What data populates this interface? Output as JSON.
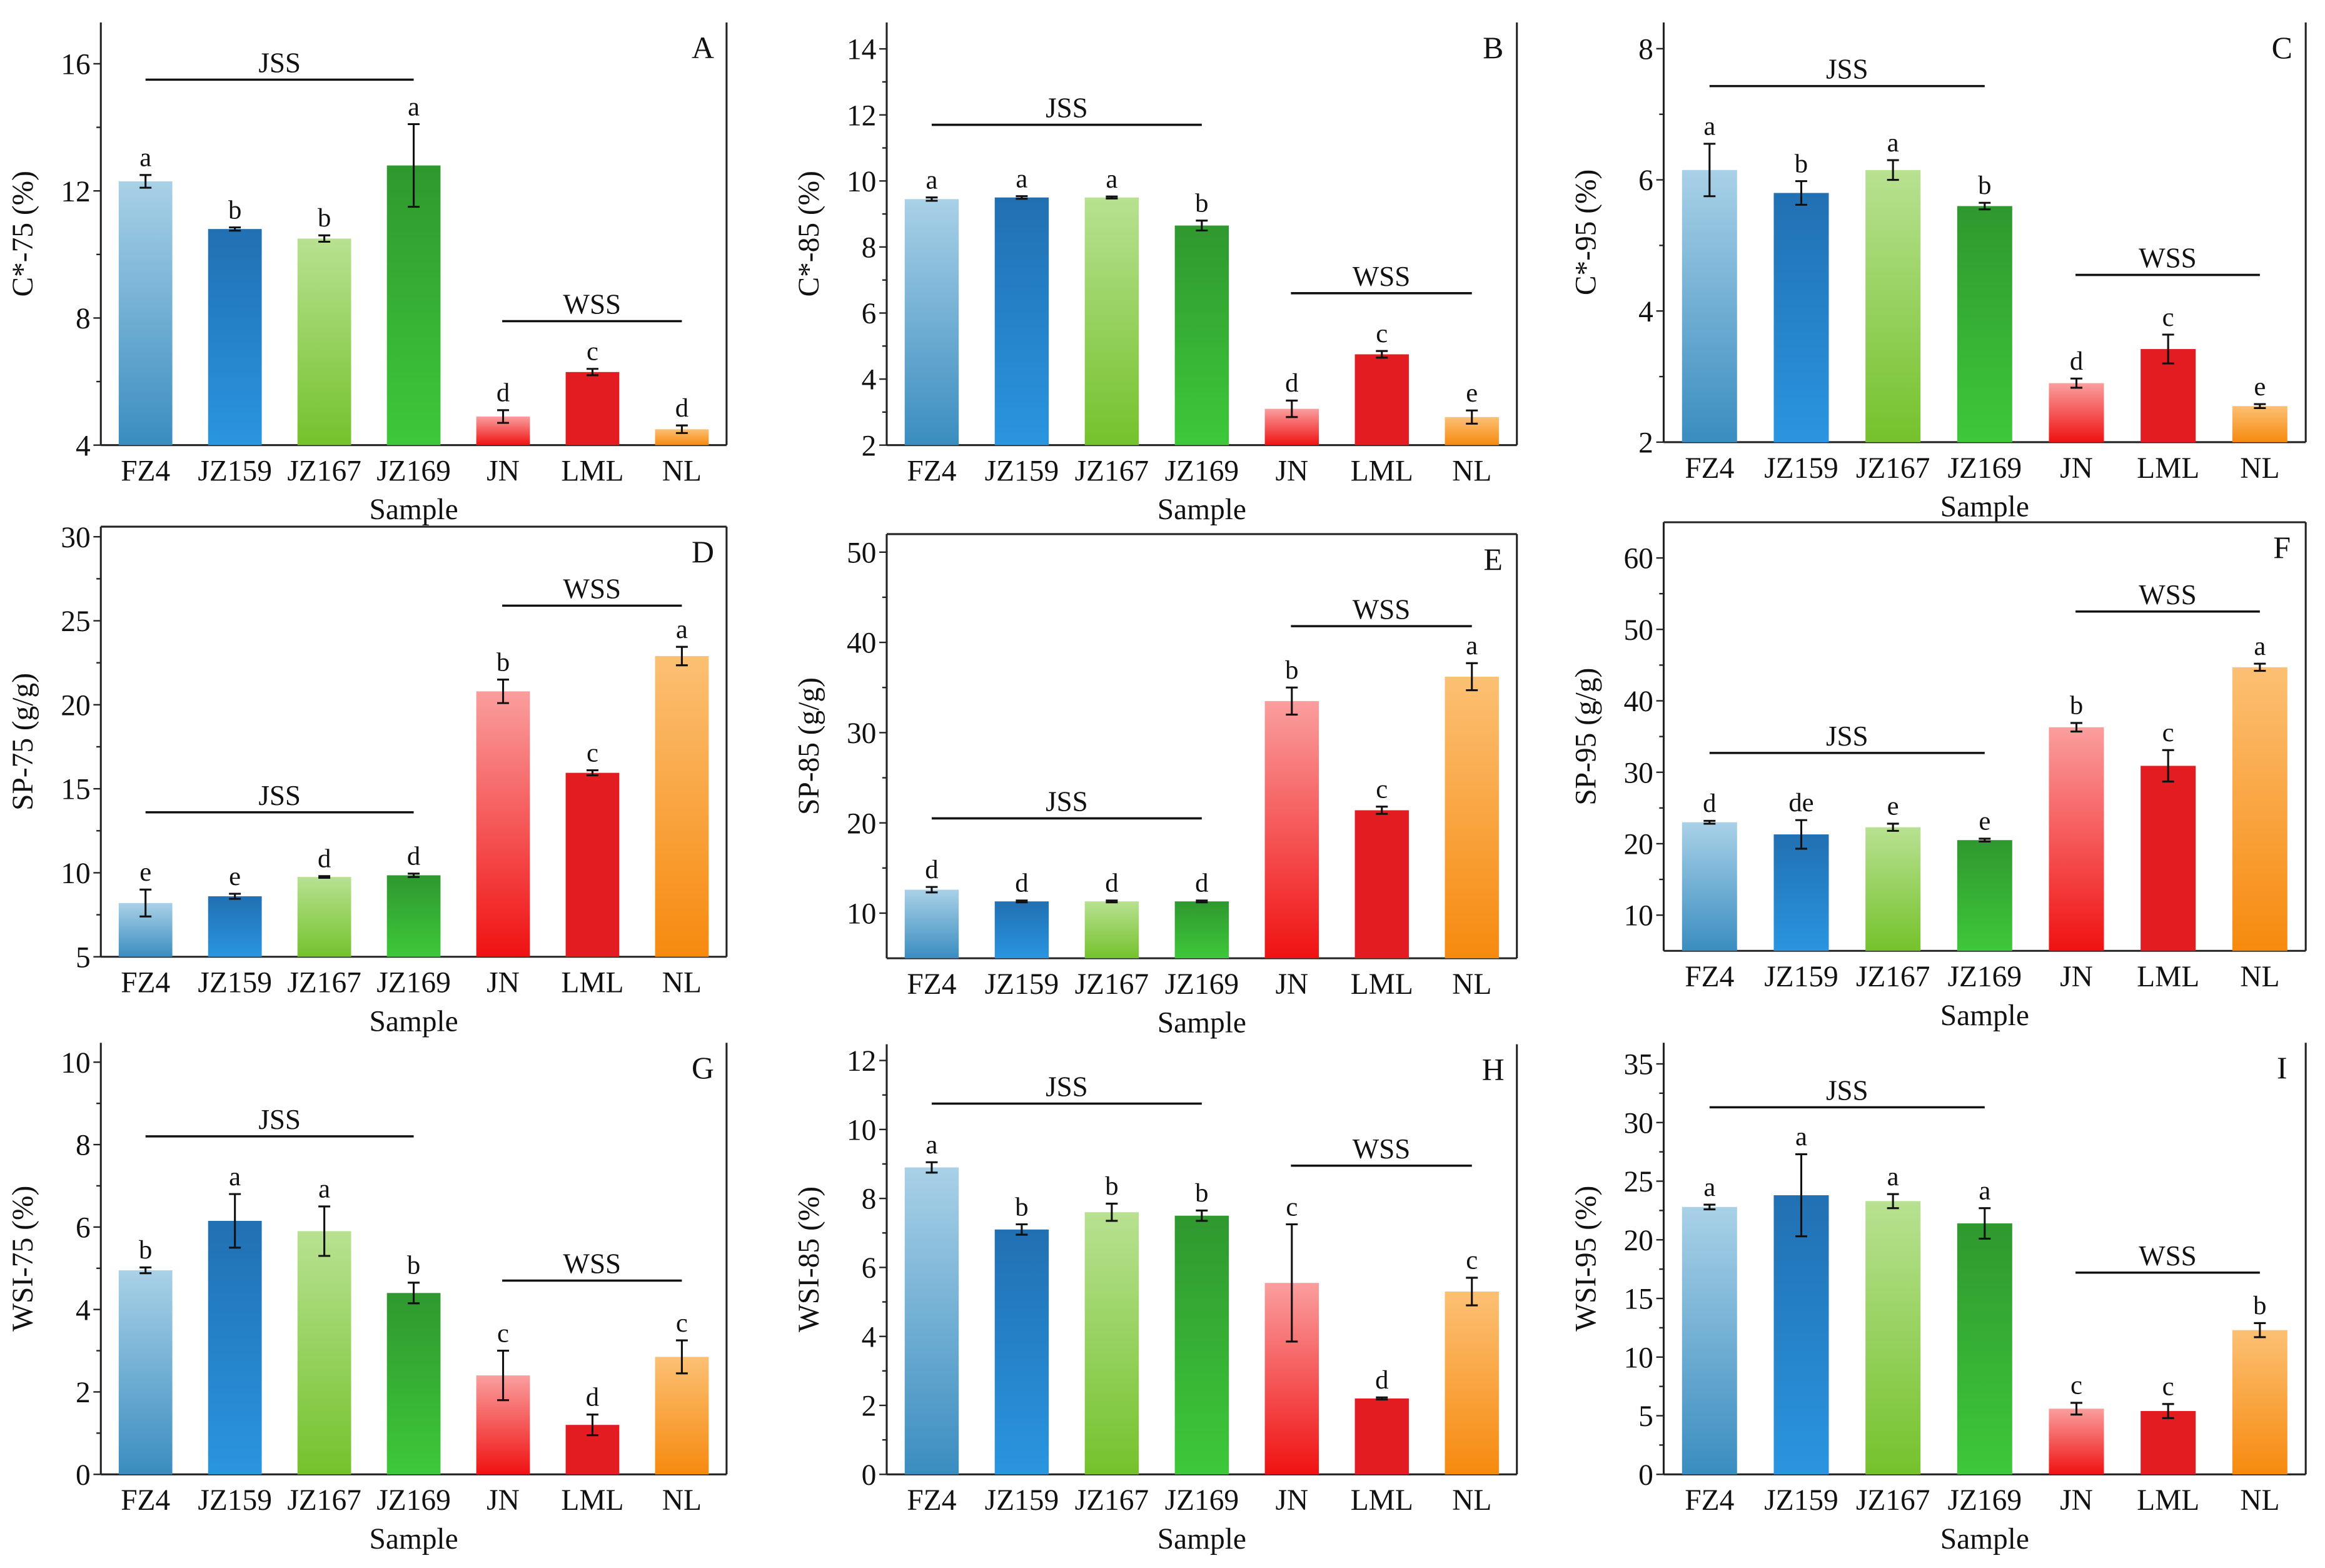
{
  "colors": {
    "FZ4": [
      "#a9d1e7",
      "#3a8dc0"
    ],
    "JZ159": [
      "#2170b2",
      "#2a95e0"
    ],
    "JZ167": [
      "#b8e191",
      "#74c22c"
    ],
    "JZ169": [
      "#2f982f",
      "#3ec83a"
    ],
    "JN": [
      "#fa9e9e",
      "#f01212"
    ],
    "LML": [
      "#e31c22",
      "#e31c22"
    ],
    "NL": [
      "#fcc074",
      "#f68a0e"
    ]
  },
  "chart_data": [
    {
      "panel": "A",
      "type": "bar",
      "ylabel": "C*-75 (%)",
      "xlabel": "Sample",
      "categories": [
        "FZ4",
        "JZ159",
        "JZ167",
        "JZ169",
        "JN",
        "LML",
        "NL"
      ],
      "values": [
        12.3,
        10.8,
        10.5,
        12.8,
        4.9,
        6.3,
        4.5
      ],
      "errors": [
        0.2,
        0.05,
        0.1,
        1.3,
        0.2,
        0.1,
        0.12
      ],
      "letters": [
        "a",
        "b",
        "b",
        "a",
        "d",
        "c",
        "d"
      ],
      "ylim": [
        4,
        17.3
      ],
      "ticks": [
        4,
        8,
        12,
        16
      ],
      "groups": [
        {
          "label": "JSS",
          "y": 15.5
        },
        {
          "label": "WSS",
          "y": 7.9
        }
      ]
    },
    {
      "panel": "B",
      "type": "bar",
      "ylabel": "C*-85 (%)",
      "xlabel": "Sample",
      "categories": [
        "FZ4",
        "JZ159",
        "JZ167",
        "JZ169",
        "JN",
        "LML",
        "NL"
      ],
      "values": [
        9.45,
        9.5,
        9.5,
        8.65,
        3.1,
        4.75,
        2.85
      ],
      "errors": [
        0.05,
        0.04,
        0.03,
        0.15,
        0.25,
        0.1,
        0.2
      ],
      "letters": [
        "a",
        "a",
        "a",
        "b",
        "d",
        "c",
        "e"
      ],
      "ylim": [
        2,
        14.8
      ],
      "ticks": [
        2,
        4,
        6,
        8,
        10,
        12,
        14
      ],
      "groups": [
        {
          "label": "JSS",
          "y": 11.7
        },
        {
          "label": "WSS",
          "y": 6.6
        }
      ]
    },
    {
      "panel": "C",
      "type": "bar",
      "ylabel": "C*-95 (%)",
      "xlabel": "Sample",
      "categories": [
        "FZ4",
        "JZ159",
        "JZ167",
        "JZ169",
        "JN",
        "LML",
        "NL"
      ],
      "values": [
        6.15,
        5.8,
        6.15,
        5.6,
        2.9,
        3.42,
        2.55
      ],
      "errors": [
        0.4,
        0.18,
        0.15,
        0.05,
        0.07,
        0.22,
        0.03
      ],
      "letters": [
        "a",
        "b",
        "a",
        "b",
        "d",
        "c",
        "e"
      ],
      "ylim": [
        2,
        8.4
      ],
      "ticks": [
        2,
        4,
        6,
        8
      ],
      "groups": [
        {
          "label": "JSS",
          "y": 7.43
        },
        {
          "label": "WSS",
          "y": 4.55
        }
      ]
    },
    {
      "panel": "D",
      "type": "bar",
      "ylabel": "SP-75 (g/g)",
      "xlabel": "Sample",
      "categories": [
        "FZ4",
        "JZ159",
        "JZ167",
        "JZ169",
        "JN",
        "LML",
        "NL"
      ],
      "values": [
        8.2,
        8.6,
        9.75,
        9.85,
        20.8,
        15.95,
        22.9
      ],
      "errors": [
        0.8,
        0.15,
        0.05,
        0.1,
        0.7,
        0.15,
        0.55
      ],
      "letters": [
        "e",
        "e",
        "d",
        "d",
        "b",
        "c",
        "a"
      ],
      "ylim": [
        5,
        30.6
      ],
      "ticks": [
        5,
        10,
        15,
        20,
        25,
        30
      ],
      "groups": [
        {
          "label": "JSS",
          "y": 13.6
        },
        {
          "label": "WSS",
          "y": 25.9
        }
      ]
    },
    {
      "panel": "E",
      "type": "bar",
      "ylabel": "SP-85 (g/g)",
      "xlabel": "Sample",
      "categories": [
        "FZ4",
        "JZ159",
        "JZ167",
        "JZ169",
        "JN",
        "LML",
        "NL"
      ],
      "values": [
        12.6,
        11.3,
        11.3,
        11.3,
        33.5,
        21.4,
        36.2
      ],
      "errors": [
        0.3,
        0.1,
        0.1,
        0.1,
        1.5,
        0.4,
        1.5
      ],
      "letters": [
        "d",
        "d",
        "d",
        "d",
        "b",
        "c",
        "a"
      ],
      "ylim": [
        5,
        52
      ],
      "ticks": [
        10,
        20,
        30,
        40,
        50
      ],
      "groups": [
        {
          "label": "JSS",
          "y": 20.5
        },
        {
          "label": "WSS",
          "y": 41.8
        }
      ]
    },
    {
      "panel": "F",
      "type": "bar",
      "ylabel": "SP-95 (g/g)",
      "xlabel": "Sample",
      "categories": [
        "FZ4",
        "JZ159",
        "JZ167",
        "JZ169",
        "JN",
        "LML",
        "NL"
      ],
      "values": [
        23,
        21.3,
        22.3,
        20.5,
        36.3,
        30.9,
        44.7
      ],
      "errors": [
        0.2,
        2,
        0.5,
        0.2,
        0.6,
        2.2,
        0.5
      ],
      "letters": [
        "d",
        "de",
        "e",
        "e",
        "b",
        "c",
        "a"
      ],
      "ylim": [
        5,
        65
      ],
      "ticks": [
        10,
        20,
        30,
        40,
        50,
        60
      ],
      "groups": [
        {
          "label": "JSS",
          "y": 32.7
        },
        {
          "label": "WSS",
          "y": 52.5
        }
      ]
    },
    {
      "panel": "G",
      "type": "bar",
      "ylabel": "WSI-75 (%)",
      "xlabel": "Sample",
      "categories": [
        "FZ4",
        "JZ159",
        "JZ167",
        "JZ169",
        "JN",
        "LML",
        "NL"
      ],
      "values": [
        4.95,
        6.15,
        5.9,
        4.4,
        2.4,
        1.2,
        2.85
      ],
      "errors": [
        0.07,
        0.65,
        0.6,
        0.25,
        0.6,
        0.25,
        0.4
      ],
      "letters": [
        "b",
        "a",
        "a",
        "b",
        "c",
        "d",
        "c"
      ],
      "ylim": [
        0,
        10.47
      ],
      "ticks": [
        0,
        2,
        4,
        6,
        8,
        10
      ],
      "groups": [
        {
          "label": "JSS",
          "y": 8.2
        },
        {
          "label": "WSS",
          "y": 4.7
        }
      ]
    },
    {
      "panel": "H",
      "type": "bar",
      "ylabel": "WSI-85 (%)",
      "xlabel": "Sample",
      "categories": [
        "FZ4",
        "JZ159",
        "JZ167",
        "JZ169",
        "JN",
        "LML",
        "NL"
      ],
      "values": [
        8.9,
        7.1,
        7.6,
        7.5,
        5.55,
        2.2,
        5.3
      ],
      "errors": [
        0.15,
        0.15,
        0.25,
        0.15,
        1.7,
        0.03,
        0.4
      ],
      "letters": [
        "a",
        "b",
        "b",
        "b",
        "c",
        "d",
        "c"
      ],
      "ylim": [
        0,
        12.47
      ],
      "ticks": [
        0,
        2,
        4,
        6,
        8,
        10,
        12
      ],
      "groups": [
        {
          "label": "JSS",
          "y": 10.75
        },
        {
          "label": "WSS",
          "y": 8.95
        }
      ]
    },
    {
      "panel": "I",
      "type": "bar",
      "ylabel": "WSI-95 (%)",
      "xlabel": "Sample",
      "categories": [
        "FZ4",
        "JZ159",
        "JZ167",
        "JZ169",
        "JN",
        "LML",
        "NL"
      ],
      "values": [
        22.8,
        23.8,
        23.3,
        21.4,
        5.6,
        5.4,
        12.3
      ],
      "errors": [
        0.2,
        3.5,
        0.6,
        1.3,
        0.5,
        0.6,
        0.6
      ],
      "letters": [
        "a",
        "a",
        "a",
        "a",
        "c",
        "c",
        "b"
      ],
      "ylim": [
        0,
        36.8
      ],
      "ticks": [
        0,
        5,
        10,
        15,
        20,
        25,
        30,
        35
      ],
      "groups": [
        {
          "label": "JSS",
          "y": 31.3
        },
        {
          "label": "WSS",
          "y": 17.2
        }
      ]
    }
  ]
}
